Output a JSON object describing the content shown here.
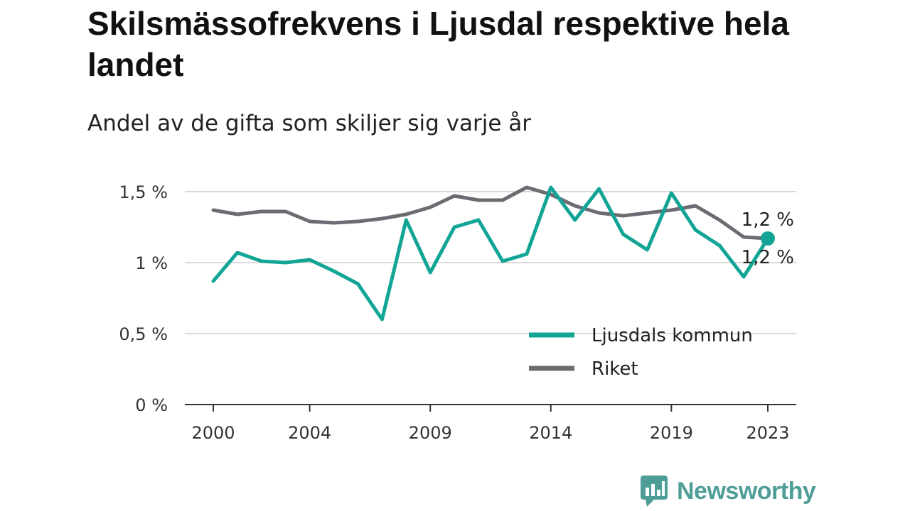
{
  "title": "Skilsmässofrekvens i Ljusdal respektive hela landet",
  "subtitle": "Andel av de gifta som skiljer sig varje år",
  "brand": "Newsworthy",
  "colors": {
    "ljusdal": "#12a596",
    "riket": "#6d6b72",
    "grid": "#d9d9d9",
    "axis": "#333333",
    "brand": "#4e9e98"
  },
  "chart_data": {
    "type": "line",
    "x": [
      2000,
      2001,
      2002,
      2003,
      2004,
      2005,
      2006,
      2007,
      2008,
      2009,
      2010,
      2011,
      2012,
      2013,
      2014,
      2015,
      2016,
      2017,
      2018,
      2019,
      2020,
      2021,
      2022,
      2023
    ],
    "xticks": [
      "2000",
      "2004",
      "2009",
      "2014",
      "2019",
      "2023"
    ],
    "yticks": [
      {
        "value": 0,
        "label": "0 %"
      },
      {
        "value": 0.5,
        "label": "0,5 %"
      },
      {
        "value": 1.0,
        "label": "1 %"
      },
      {
        "value": 1.5,
        "label": "1,5 %"
      }
    ],
    "ylim": [
      0,
      1.6
    ],
    "grid": true,
    "legend_position": "bottom-right",
    "series": [
      {
        "name": "Ljusdals kommun",
        "values": [
          0.87,
          1.07,
          1.01,
          1.0,
          1.02,
          0.94,
          0.85,
          0.6,
          1.3,
          0.93,
          1.25,
          1.3,
          1.01,
          1.06,
          1.53,
          1.3,
          1.52,
          1.2,
          1.09,
          1.49,
          1.23,
          1.12,
          0.9,
          1.17
        ],
        "end_label": "1,2 %"
      },
      {
        "name": "Riket",
        "values": [
          1.37,
          1.34,
          1.36,
          1.36,
          1.29,
          1.28,
          1.29,
          1.31,
          1.34,
          1.39,
          1.47,
          1.44,
          1.44,
          1.53,
          1.48,
          1.4,
          1.35,
          1.33,
          1.35,
          1.37,
          1.4,
          1.3,
          1.18,
          1.17
        ],
        "end_label": "1,2 %"
      }
    ]
  }
}
